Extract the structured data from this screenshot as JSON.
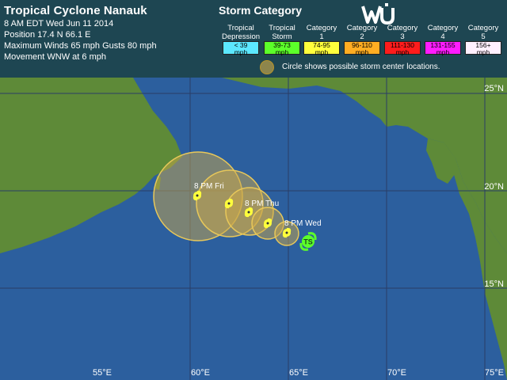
{
  "storm": {
    "title": "Tropical Cyclone Nanauk",
    "date": "8 AM EDT Wed Jun 11 2014",
    "position": "Position 17.4 N 66.1 E",
    "winds": "Maximum Winds 65 mph   Gusts 80 mph",
    "movement": "Movement WNW at 6 mph"
  },
  "legend": {
    "title": "Storm Category",
    "circle_note": "Circle shows possible storm center locations.",
    "categories": [
      {
        "name1": "Tropical",
        "name2": "Depression",
        "r1": "< 39",
        "r2": "mph",
        "color": "#5ce8ff"
      },
      {
        "name1": "Tropical",
        "name2": "Storm",
        "r1": "39-73",
        "r2": "mph",
        "color": "#5cff2a"
      },
      {
        "name1": "Category",
        "name2": "1",
        "r1": "74-95",
        "r2": "mph",
        "color": "#ffff3c"
      },
      {
        "name1": "Category",
        "name2": "2",
        "r1": "96-110",
        "r2": "mph",
        "color": "#ffad22"
      },
      {
        "name1": "Category",
        "name2": "3",
        "r1": "111-130",
        "r2": "mph",
        "color": "#ff1c1c"
      },
      {
        "name1": "Category",
        "name2": "4",
        "r1": "131-155",
        "r2": "mph",
        "color": "#ff1cff"
      },
      {
        "name1": "Category",
        "name2": "5",
        "r1": "156+",
        "r2": "mph",
        "color": "#fff0ff"
      }
    ]
  },
  "map": {
    "lat_labels": [
      "25°N",
      "20°N",
      "15°N"
    ],
    "lon_labels": [
      "55°E",
      "60°E",
      "65°E",
      "70°E",
      "75°E"
    ],
    "ocean_color": "#2c5f9e",
    "land_color": "#5e8a38",
    "forecast_labels": [
      "8 PM Fri",
      "8 PM Thu",
      "8 PM Wed"
    ],
    "current_marker": "TS"
  }
}
